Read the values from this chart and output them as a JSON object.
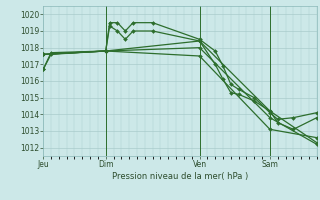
{
  "background_color": "#cce8e8",
  "grid_color": "#aacccc",
  "line_color": "#2d6e2d",
  "title": "Pression niveau de la mer( hPa )",
  "ylim": [
    1011.5,
    1020.5
  ],
  "yticks": [
    1012,
    1013,
    1014,
    1015,
    1016,
    1017,
    1018,
    1019,
    1020
  ],
  "day_labels": [
    "Jeu",
    "Dim",
    "Ven",
    "Sam"
  ],
  "day_positions": [
    0,
    16,
    40,
    58
  ],
  "series1_x": [
    0,
    2,
    16,
    17,
    19,
    21,
    23,
    28,
    40,
    44,
    46,
    48,
    50,
    54,
    58,
    60,
    64,
    70
  ],
  "series1_y": [
    1016.7,
    1017.6,
    1017.8,
    1019.5,
    1019.5,
    1019.0,
    1019.5,
    1019.5,
    1018.5,
    1017.8,
    1016.9,
    1015.8,
    1015.5,
    1015.0,
    1014.1,
    1013.7,
    1013.8,
    1014.1
  ],
  "series2_x": [
    0,
    2,
    16,
    17,
    19,
    21,
    23,
    28,
    40,
    44,
    46,
    48,
    50,
    54,
    58,
    60,
    64,
    70
  ],
  "series2_y": [
    1016.7,
    1017.7,
    1017.8,
    1019.3,
    1019.0,
    1018.5,
    1019.0,
    1019.0,
    1018.4,
    1017.0,
    1016.1,
    1015.3,
    1015.2,
    1014.8,
    1014.2,
    1013.5,
    1013.1,
    1013.8
  ],
  "series3_x": [
    0,
    16,
    40,
    58,
    70
  ],
  "series3_y": [
    1017.6,
    1017.8,
    1018.4,
    1014.2,
    1012.3
  ],
  "series4_x": [
    0,
    16,
    40,
    58,
    70
  ],
  "series4_y": [
    1017.6,
    1017.8,
    1018.0,
    1013.8,
    1012.2
  ],
  "series5_x": [
    0,
    16,
    40,
    58,
    70
  ],
  "series5_y": [
    1017.6,
    1017.8,
    1017.5,
    1013.1,
    1012.6
  ],
  "vline_positions": [
    16,
    40,
    58
  ],
  "xlim": [
    0,
    70
  ],
  "markersize": 2.0,
  "linewidth": 0.9
}
